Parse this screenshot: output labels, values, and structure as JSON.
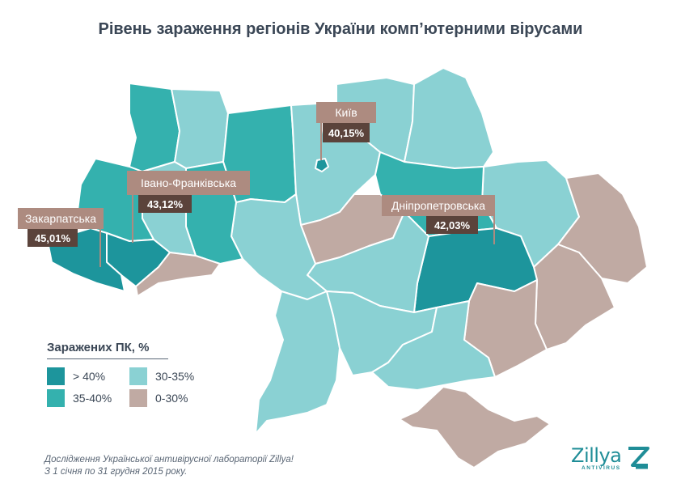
{
  "title": "Рівень зараження регіонів України комп’ютерними вірусами",
  "colors": {
    "high": "#1d959c",
    "mid": "#34b1ae",
    "low": "#8ad1d3",
    "lowest": "#c0aaa3",
    "callout_light": "#ad8b80",
    "callout_dark": "#5b433b",
    "border": "#ffffff"
  },
  "callouts": [
    {
      "region": "Київ",
      "value": "40,15%"
    },
    {
      "region": "Івано-Франківська",
      "value": "43,12%"
    },
    {
      "region": "Закарпатська",
      "value": "45,01%"
    },
    {
      "region": "Дніпропетровська",
      "value": "42,03%"
    }
  ],
  "legend": {
    "title": "Заражених ПК, %",
    "items": [
      {
        "label": "> 40%",
        "color": "#1d959c"
      },
      {
        "label": "35-40%",
        "color": "#34b1ae"
      },
      {
        "label": "30-35%",
        "color": "#8ad1d3"
      },
      {
        "label": "0-30%",
        "color": "#c0aaa3"
      }
    ]
  },
  "footer": {
    "line1": "Дослідження Української антивірусної лабораторії Zillya!",
    "line2": "З 1 січня по 31 грудня 2015 року."
  },
  "logo": {
    "name": "Zillya",
    "subtitle": "ANTIVIRUS"
  }
}
